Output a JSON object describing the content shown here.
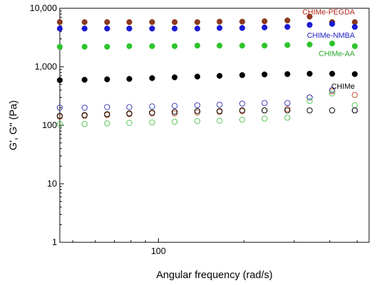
{
  "chart_data": {
    "type": "scatter",
    "xlabel": "Angular frequency (rad/s)",
    "ylabel": "G', G'' (Pa)",
    "x_scale": "log",
    "y_scale": "log",
    "xlim": [
      45,
      550
    ],
    "ylim": [
      1,
      10000
    ],
    "x_tick_labels": [
      {
        "value": 100,
        "label": "100"
      }
    ],
    "y_tick_labels": [
      {
        "value": 1,
        "label": "1"
      },
      {
        "value": 10,
        "label": "10"
      },
      {
        "value": 100,
        "label": "100"
      },
      {
        "value": 1000,
        "label": "1,000"
      },
      {
        "value": 10000,
        "label": "10,000"
      }
    ],
    "grid": false,
    "x": [
      45,
      55,
      66,
      79,
      95,
      114,
      137,
      164,
      197,
      236,
      284,
      340,
      408,
      490
    ],
    "series": [
      {
        "name": "CHIMe-PEGDA",
        "measure": "G'",
        "marker": "filled",
        "color": "#8b3a1e",
        "values": [
          5800,
          5800,
          5800,
          5800,
          5800,
          5800,
          5800,
          5900,
          5900,
          6000,
          6200,
          7200,
          5800,
          5800
        ]
      },
      {
        "name": "CHIMe-PEGDA",
        "measure": "G''",
        "marker": "open",
        "color": "#c0522b",
        "values": [
          140,
          145,
          150,
          155,
          160,
          160,
          165,
          170,
          175,
          180,
          190,
          300,
          380,
          330
        ]
      },
      {
        "name": "CHIMe-NMBA",
        "measure": "G'",
        "marker": "filled",
        "color": "#1a1ad6",
        "values": [
          4500,
          4500,
          4500,
          4500,
          4500,
          4500,
          4500,
          4600,
          4600,
          4700,
          4800,
          5200,
          5400,
          4800
        ]
      },
      {
        "name": "CHIMe-NMBA",
        "measure": "G''",
        "marker": "open",
        "color": "#3a3ab8",
        "values": [
          200,
          200,
          205,
          205,
          210,
          215,
          220,
          225,
          235,
          240,
          240,
          300,
          400,
          180
        ]
      },
      {
        "name": "CHIMe-AA",
        "measure": "G'",
        "marker": "filled",
        "color": "#2dc42d",
        "values": [
          2200,
          2200,
          2200,
          2250,
          2250,
          2250,
          2300,
          2300,
          2300,
          2300,
          2350,
          2400,
          2500,
          2250
        ]
      },
      {
        "name": "CHIMe-AA",
        "measure": "G''",
        "marker": "open",
        "color": "#55c455",
        "values": [
          105,
          105,
          108,
          110,
          112,
          115,
          118,
          120,
          125,
          130,
          135,
          260,
          350,
          220
        ]
      },
      {
        "name": "CHIMe",
        "measure": "G'",
        "marker": "filled",
        "color": "#000000",
        "values": [
          590,
          600,
          610,
          620,
          640,
          660,
          680,
          700,
          720,
          740,
          750,
          760,
          760,
          750
        ]
      },
      {
        "name": "CHIMe",
        "measure": "G''",
        "marker": "open",
        "color": "#000000",
        "values": [
          145,
          150,
          155,
          160,
          165,
          170,
          175,
          175,
          180,
          180,
          180,
          180,
          180,
          180
        ]
      }
    ],
    "labels": [
      {
        "text": "CHIMe-PEGDA",
        "color": "#b0281c"
      },
      {
        "text": "CHIMe-NMBA",
        "color": "#1c1cc0"
      },
      {
        "text": "CHIMe-AA",
        "color": "#2aa82a"
      },
      {
        "text": "CHIMe",
        "color": "#000000"
      }
    ]
  }
}
